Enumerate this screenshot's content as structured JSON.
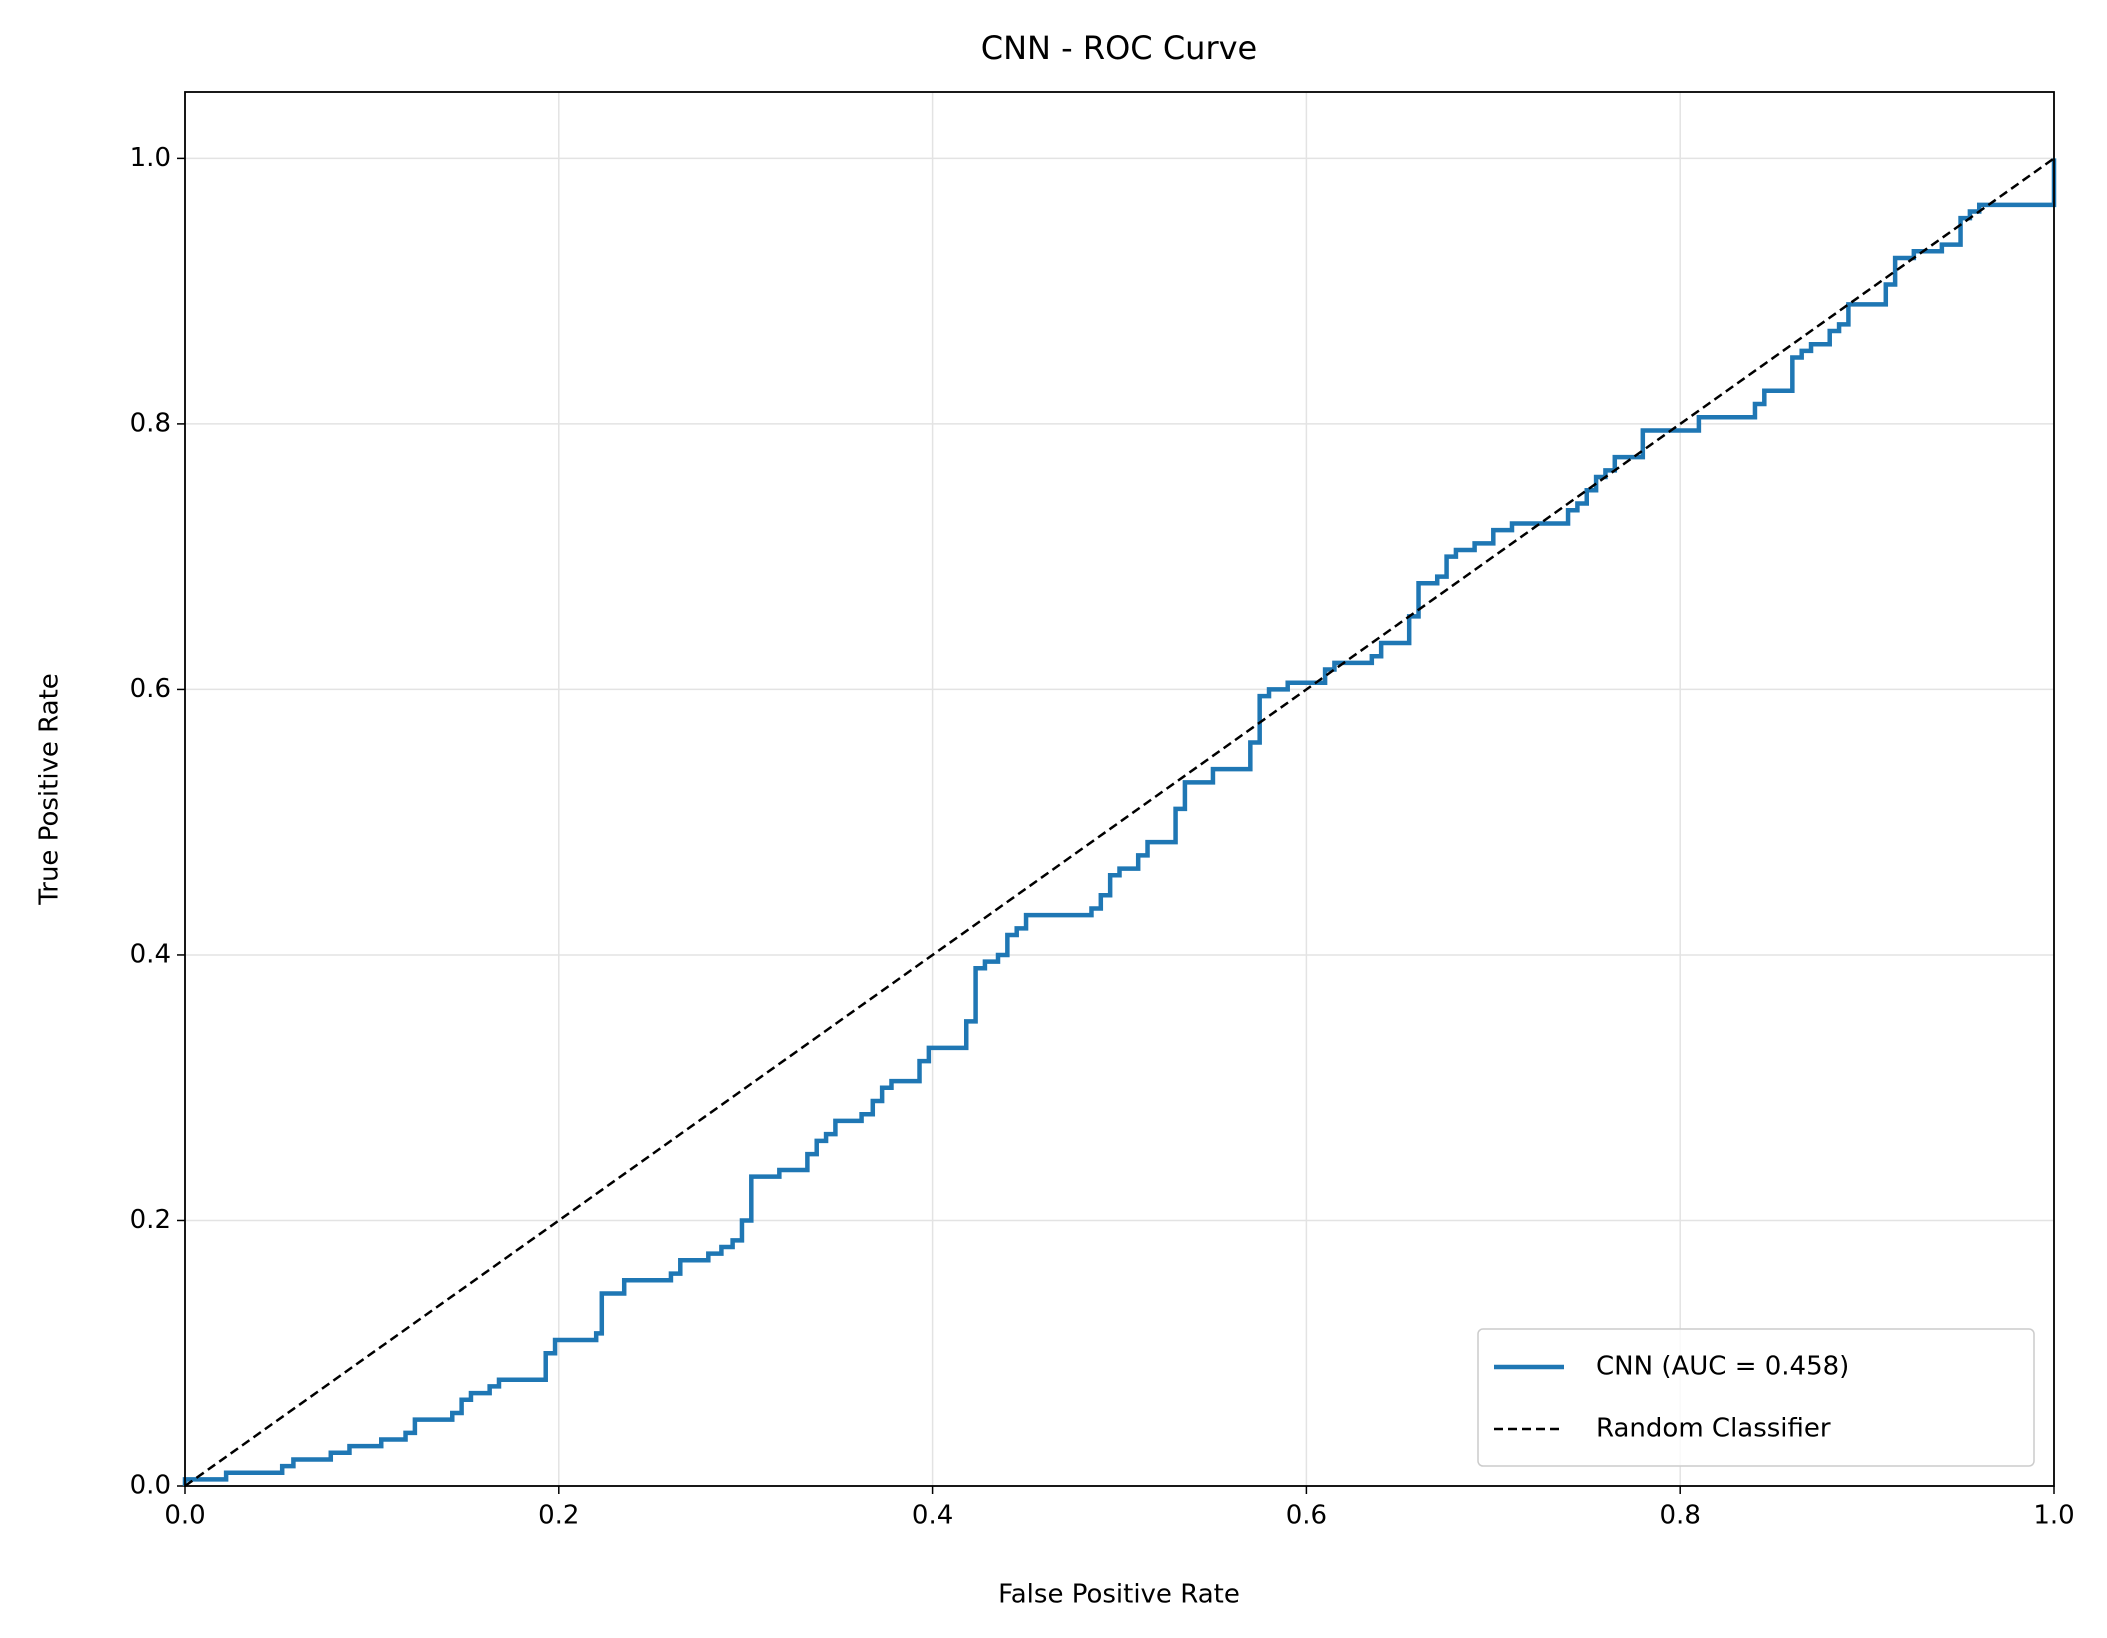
{
  "chart_data": {
    "type": "line",
    "title": "CNN - ROC Curve",
    "x_label": "False Positive Rate",
    "y_label": "True Positive Rate",
    "xlim": [
      0,
      1
    ],
    "ylim": [
      0,
      1.05
    ],
    "xticks": [
      {
        "value": 0,
        "label": "0.0"
      },
      0.2,
      0.4,
      0.6,
      0.8,
      {
        "value": 1,
        "label": "1.0"
      }
    ],
    "yticks": [
      {
        "value": 0,
        "label": "0.0"
      },
      0.2,
      0.4,
      0.6,
      0.8,
      {
        "value": 1,
        "label": "1.0"
      }
    ],
    "grid": true,
    "legend": "lower right",
    "series": [
      {
        "name": "CNN (AUC = 0.458)",
        "color": "#1f77b4",
        "style": "solid",
        "x": [
          0,
          0,
          0.022,
          0.022,
          0.052,
          0.052,
          0.058,
          0.058,
          0.078,
          0.078,
          0.088,
          0.088,
          0.105,
          0.105,
          0.118,
          0.118,
          0.123,
          0.123,
          0.143,
          0.143,
          0.148,
          0.148,
          0.153,
          0.153,
          0.163,
          0.163,
          0.168,
          0.168,
          0.193,
          0.193,
          0.198,
          0.198,
          0.22,
          0.22,
          0.223,
          0.223,
          0.235,
          0.235,
          0.26,
          0.26,
          0.265,
          0.265,
          0.28,
          0.28,
          0.287,
          0.287,
          0.293,
          0.293,
          0.298,
          0.298,
          0.303,
          0.303,
          0.318,
          0.318,
          0.333,
          0.333,
          0.338,
          0.338,
          0.343,
          0.343,
          0.348,
          0.348,
          0.362,
          0.362,
          0.368,
          0.368,
          0.373,
          0.373,
          0.378,
          0.378,
          0.393,
          0.393,
          0.398,
          0.398,
          0.418,
          0.418,
          0.423,
          0.423,
          0.428,
          0.428,
          0.435,
          0.435,
          0.44,
          0.44,
          0.445,
          0.445,
          0.45,
          0.45,
          0.485,
          0.485,
          0.49,
          0.49,
          0.495,
          0.495,
          0.5,
          0.5,
          0.51,
          0.51,
          0.515,
          0.515,
          0.53,
          0.53,
          0.535,
          0.535,
          0.55,
          0.55,
          0.57,
          0.57,
          0.575,
          0.575,
          0.58,
          0.58,
          0.59,
          0.59,
          0.61,
          0.61,
          0.615,
          0.615,
          0.635,
          0.635,
          0.64,
          0.64,
          0.655,
          0.655,
          0.66,
          0.66,
          0.67,
          0.67,
          0.675,
          0.675,
          0.68,
          0.68,
          0.69,
          0.69,
          0.7,
          0.7,
          0.71,
          0.71,
          0.74,
          0.74,
          0.745,
          0.745,
          0.75,
          0.75,
          0.755,
          0.755,
          0.76,
          0.76,
          0.765,
          0.765,
          0.78,
          0.78,
          0.81,
          0.81,
          0.84,
          0.84,
          0.845,
          0.845,
          0.86,
          0.86,
          0.865,
          0.865,
          0.87,
          0.87,
          0.88,
          0.88,
          0.885,
          0.885,
          0.89,
          0.89,
          0.91,
          0.91,
          0.915,
          0.915,
          0.925,
          0.925,
          0.94,
          0.94,
          0.95,
          0.95,
          0.955,
          0.955,
          0.96,
          0.96,
          1,
          1
        ],
        "values": [
          0,
          0.005,
          0.005,
          0.01,
          0.01,
          0.015,
          0.015,
          0.02,
          0.02,
          0.025,
          0.025,
          0.03,
          0.03,
          0.035,
          0.035,
          0.04,
          0.04,
          0.05,
          0.05,
          0.055,
          0.055,
          0.065,
          0.065,
          0.07,
          0.07,
          0.075,
          0.075,
          0.08,
          0.08,
          0.1,
          0.1,
          0.11,
          0.11,
          0.115,
          0.115,
          0.145,
          0.145,
          0.155,
          0.155,
          0.16,
          0.16,
          0.17,
          0.17,
          0.175,
          0.175,
          0.18,
          0.18,
          0.185,
          0.185,
          0.2,
          0.2,
          0.233,
          0.233,
          0.238,
          0.238,
          0.25,
          0.25,
          0.26,
          0.26,
          0.265,
          0.265,
          0.275,
          0.275,
          0.28,
          0.28,
          0.29,
          0.29,
          0.3,
          0.3,
          0.305,
          0.305,
          0.32,
          0.32,
          0.33,
          0.33,
          0.35,
          0.35,
          0.39,
          0.39,
          0.395,
          0.395,
          0.4,
          0.4,
          0.415,
          0.415,
          0.42,
          0.42,
          0.43,
          0.43,
          0.435,
          0.435,
          0.445,
          0.445,
          0.46,
          0.46,
          0.465,
          0.465,
          0.475,
          0.475,
          0.485,
          0.485,
          0.51,
          0.51,
          0.53,
          0.53,
          0.54,
          0.54,
          0.56,
          0.56,
          0.595,
          0.595,
          0.6,
          0.6,
          0.605,
          0.605,
          0.615,
          0.615,
          0.62,
          0.62,
          0.625,
          0.625,
          0.635,
          0.635,
          0.655,
          0.655,
          0.68,
          0.68,
          0.685,
          0.685,
          0.7,
          0.7,
          0.705,
          0.705,
          0.71,
          0.71,
          0.72,
          0.72,
          0.725,
          0.725,
          0.735,
          0.735,
          0.74,
          0.74,
          0.75,
          0.75,
          0.76,
          0.76,
          0.765,
          0.765,
          0.775,
          0.775,
          0.795,
          0.795,
          0.805,
          0.805,
          0.815,
          0.815,
          0.825,
          0.825,
          0.85,
          0.85,
          0.855,
          0.855,
          0.86,
          0.86,
          0.87,
          0.87,
          0.875,
          0.875,
          0.89,
          0.89,
          0.905,
          0.905,
          0.925,
          0.925,
          0.93,
          0.93,
          0.935,
          0.935,
          0.955,
          0.955,
          0.96,
          0.96,
          0.965,
          0.965,
          1
        ]
      },
      {
        "name": "Random Classifier",
        "color": "#000000",
        "style": "dashed",
        "x": [
          0,
          1
        ],
        "values": [
          0,
          1
        ]
      }
    ]
  }
}
